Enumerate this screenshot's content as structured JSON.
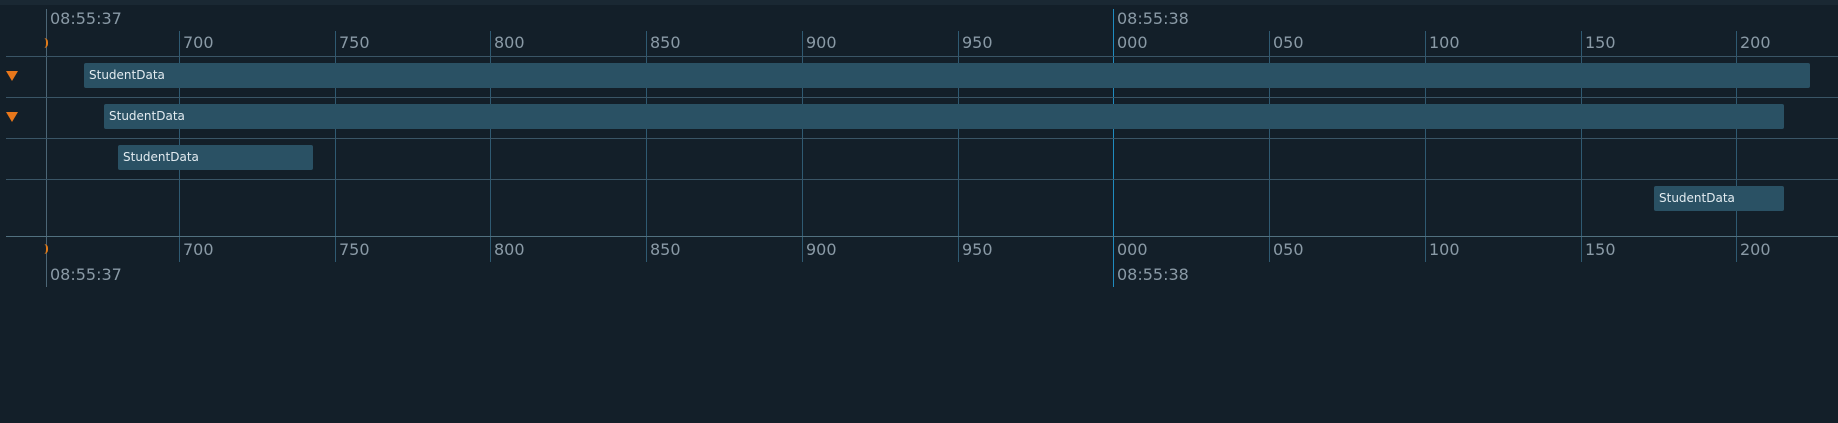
{
  "ticks": [
    {
      "pos": 46,
      "label": "",
      "type": "origin"
    },
    {
      "pos": 179,
      "label": "700",
      "type": "minor"
    },
    {
      "pos": 335,
      "label": "750",
      "type": "minor"
    },
    {
      "pos": 490,
      "label": "800",
      "type": "minor"
    },
    {
      "pos": 646,
      "label": "850",
      "type": "minor"
    },
    {
      "pos": 802,
      "label": "900",
      "type": "minor"
    },
    {
      "pos": 958,
      "label": "950",
      "type": "minor"
    },
    {
      "pos": 1113,
      "label": "000",
      "type": "second"
    },
    {
      "pos": 1269,
      "label": "050",
      "type": "minor"
    },
    {
      "pos": 1425,
      "label": "100",
      "type": "minor"
    },
    {
      "pos": 1581,
      "label": "150",
      "type": "minor"
    },
    {
      "pos": 1736,
      "label": "200",
      "type": "minor"
    }
  ],
  "time_labels": [
    {
      "pos": 46,
      "label": "08:55:37"
    },
    {
      "pos": 1113,
      "label": "08:55:38"
    }
  ],
  "rows": [
    {
      "expand_icon": true
    },
    {
      "expand_icon": true
    },
    {
      "expand_icon": false
    },
    {
      "expand_icon": false
    }
  ],
  "bars": [
    {
      "row": 0,
      "start": 84,
      "end": 1810,
      "label": "StudentData"
    },
    {
      "row": 1,
      "start": 104,
      "end": 1784,
      "label": "StudentData"
    },
    {
      "row": 2,
      "start": 118,
      "end": 313,
      "label": "StudentData"
    },
    {
      "row": 3,
      "start": 1654,
      "end": 1784,
      "label": "StudentData"
    }
  ]
}
